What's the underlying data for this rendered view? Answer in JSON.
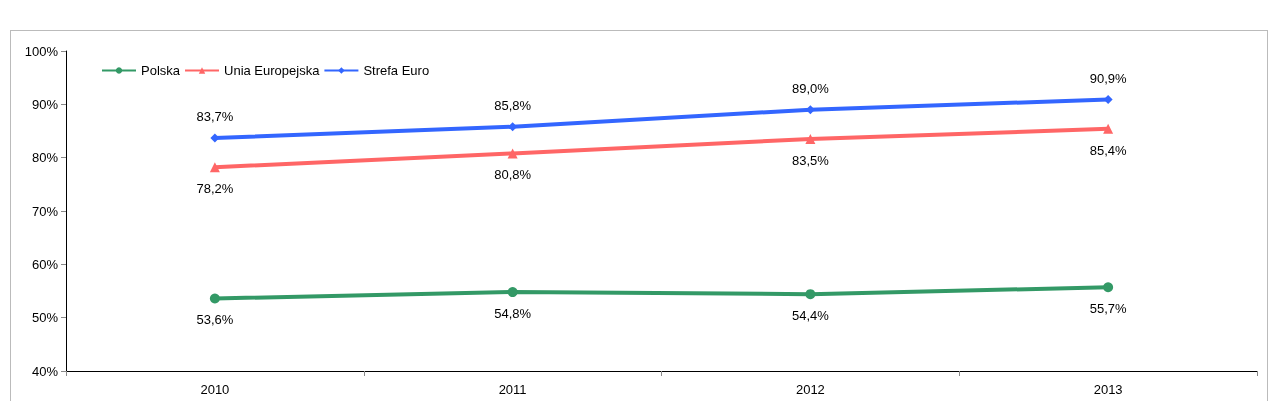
{
  "chart_data": {
    "type": "line",
    "categories": [
      "2010",
      "2011",
      "2012",
      "2013"
    ],
    "series": [
      {
        "name": "Polska",
        "color": "#339966",
        "marker": "circle",
        "values": [
          53.6,
          54.8,
          54.4,
          55.7
        ],
        "value_labels": [
          "53,6%",
          "54,8%",
          "54,4%",
          "55,7%"
        ]
      },
      {
        "name": "Unia Europejska",
        "color": "#ff6666",
        "marker": "triangle",
        "values": [
          78.2,
          80.8,
          83.5,
          85.4
        ],
        "value_labels": [
          "78,2%",
          "80,8%",
          "83,5%",
          "85,4%"
        ]
      },
      {
        "name": "Strefa Euro",
        "color": "#3366ff",
        "marker": "diamond",
        "values": [
          83.7,
          85.8,
          89.0,
          90.9
        ],
        "value_labels": [
          "83,7%",
          "85,8%",
          "89,0%",
          "90,9%"
        ]
      }
    ],
    "ylim": [
      40,
      100
    ],
    "yticks": [
      {
        "value": 40,
        "label": "40%"
      },
      {
        "value": 50,
        "label": "50%"
      },
      {
        "value": 60,
        "label": "60%"
      },
      {
        "value": 70,
        "label": "70%"
      },
      {
        "value": 80,
        "label": "80%"
      },
      {
        "value": 90,
        "label": "90%"
      },
      {
        "value": 100,
        "label": "100%"
      }
    ],
    "grid": false,
    "legend": "top left"
  }
}
